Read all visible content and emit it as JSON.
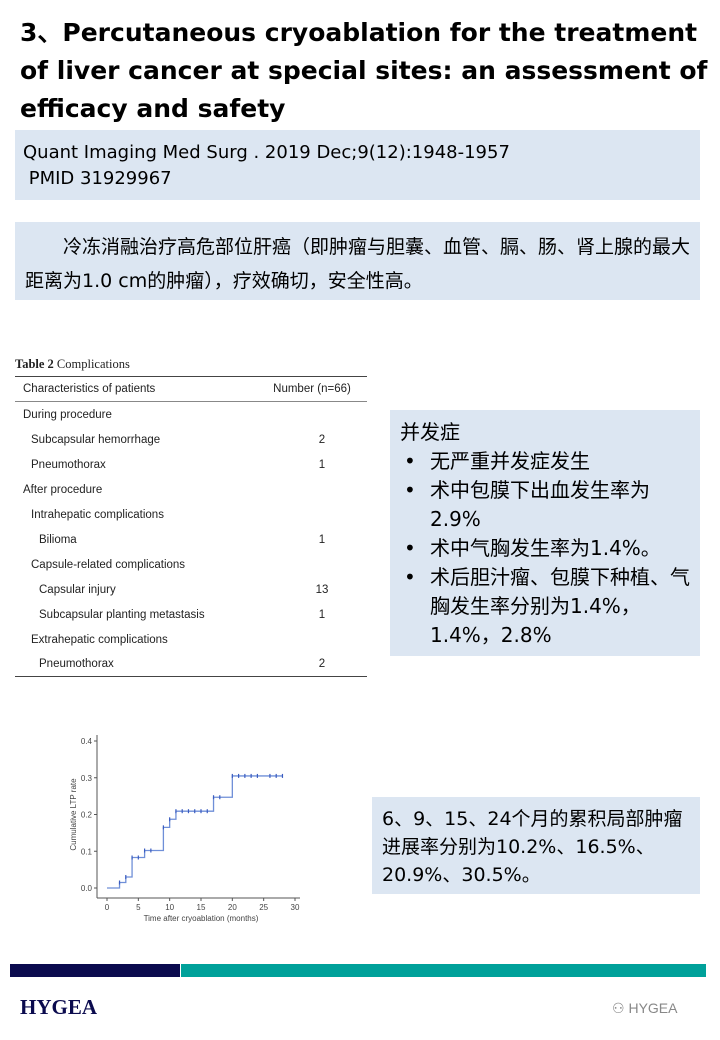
{
  "title": "3、Percutaneous cryoablation for the treatment of liver cancer at special sites: an assessment of efficacy and safety",
  "citation": {
    "journal": "Quant Imaging Med Surg . 2019 Dec;9(12):1948-1957",
    "pmid": " PMID 31929967"
  },
  "summary": "冷冻消融治疗高危部位肝癌（即肿瘤与胆囊、血管、膈、肠、肾上腺的最大距离为1.0 cm的肿瘤），疗效确切，安全性高。",
  "table": {
    "caption_label": "Table 2",
    "caption": "Complications",
    "headers": [
      "Characteristics of patients",
      "Number (n=66)"
    ],
    "rows": [
      {
        "label": "During procedure",
        "value": "",
        "indent": 0
      },
      {
        "label": "Subcapsular hemorrhage",
        "value": "2",
        "indent": 1
      },
      {
        "label": "Pneumothorax",
        "value": "1",
        "indent": 1
      },
      {
        "label": "After procedure",
        "value": "",
        "indent": 0
      },
      {
        "label": "Intrahepatic complications",
        "value": "",
        "indent": 1
      },
      {
        "label": "Bilioma",
        "value": "1",
        "indent": 2
      },
      {
        "label": "Capsule-related complications",
        "value": "",
        "indent": 1
      },
      {
        "label": "Capsular injury",
        "value": "13",
        "indent": 2
      },
      {
        "label": "Subcapsular planting metastasis",
        "value": "1",
        "indent": 2
      },
      {
        "label": "Extrahepatic complications",
        "value": "",
        "indent": 1
      },
      {
        "label": "Pneumothorax",
        "value": "2",
        "indent": 2
      }
    ]
  },
  "complications_box": {
    "heading": "并发症",
    "bullets": [
      "无严重并发症发生",
      "术中包膜下出血发生率为2.9%",
      "术中气胸发生率为1.4%。",
      "术后胆汁瘤、包膜下种植、气胸发生率分别为1.4%，1.4%，2.8%"
    ]
  },
  "ltp_box": "6、9、15、24个月的累积局部肿瘤进展率分别为10.2%、16.5%、20.9%、30.5%。",
  "chart_data": {
    "type": "line",
    "step": true,
    "xlabel": "Time after cryoablation (months)",
    "ylabel": "Cumulative LTP rate",
    "xlim": [
      0,
      30
    ],
    "ylim": [
      0,
      0.4
    ],
    "xticks": [
      "0",
      "5",
      "10",
      "15",
      "20",
      "25",
      "30"
    ],
    "yticks": [
      "0.0",
      "0.1",
      "0.2",
      "0.3",
      "0.4"
    ],
    "x": [
      0,
      2,
      3,
      4,
      6,
      9,
      10,
      11,
      17,
      20,
      28
    ],
    "y": [
      0,
      0.015,
      0.03,
      0.083,
      0.102,
      0.165,
      0.187,
      0.209,
      0.247,
      0.305,
      0.305
    ],
    "censored_x": [
      2,
      3,
      4,
      5,
      6,
      7,
      9,
      10,
      11,
      12,
      13,
      14,
      15,
      16,
      17,
      18,
      20,
      21,
      22,
      23,
      24,
      26,
      27,
      28
    ],
    "color": "#6f8fd8"
  },
  "footer": {
    "logo": "HYGEA",
    "watermark": "HYGEA",
    "colors": {
      "navy": "#0b0b4e",
      "teal": "#00a19a"
    }
  }
}
